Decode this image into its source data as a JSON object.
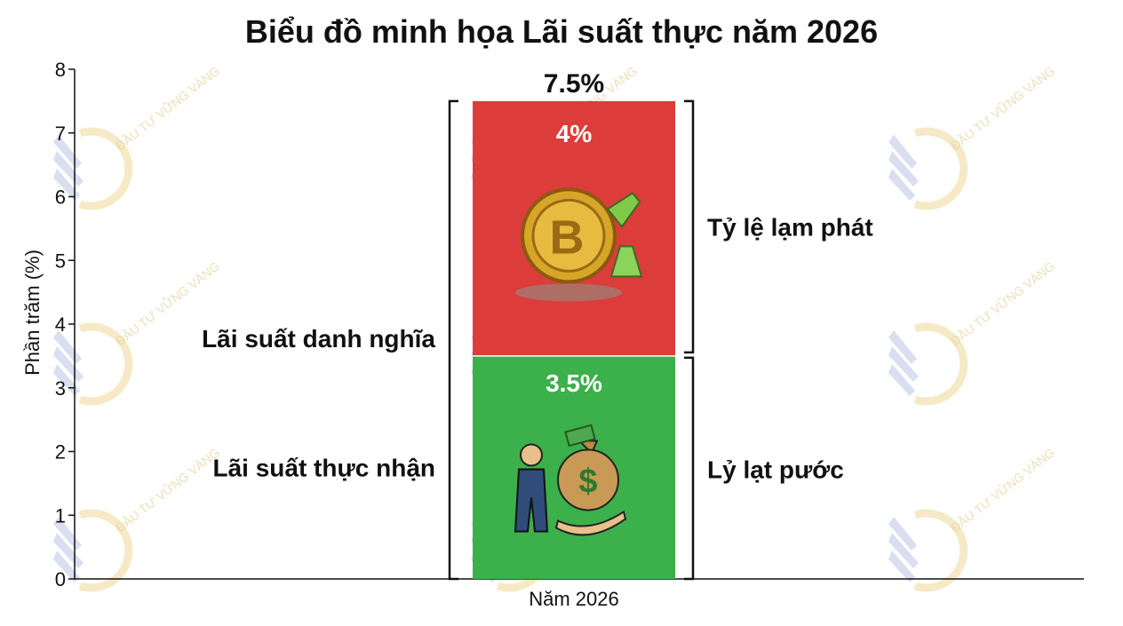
{
  "chart_data": {
    "type": "bar",
    "stacked": true,
    "title": "Biểu đồ minh họa Lãi suất thực năm 2026",
    "xlabel": "",
    "ylabel": "Phần trăm (%)",
    "categories": [
      "Năm 2026"
    ],
    "ylim": [
      0,
      8
    ],
    "yticks": [
      0,
      1,
      2,
      3,
      4,
      5,
      6,
      7,
      8
    ],
    "series": [
      {
        "label": "3.5%",
        "values": [
          3.5
        ],
        "color": "#3cb04a",
        "icon": "money-bag-icon"
      },
      {
        "label": "4%",
        "values": [
          4
        ],
        "color": "#dc3d3a",
        "icon": "bitcoin-coin-icon"
      }
    ],
    "total_label": "7.5%",
    "left_labels": [
      "Lãi suất danh nghĩa",
      "Lãi suất thực nhận"
    ],
    "right_labels": [
      "Tỷ lệ lạm phát",
      "Lỷ lạt pước"
    ],
    "watermark": "ĐẦU TƯ VỮNG VÀNG",
    "grid": false,
    "legend": "none"
  }
}
